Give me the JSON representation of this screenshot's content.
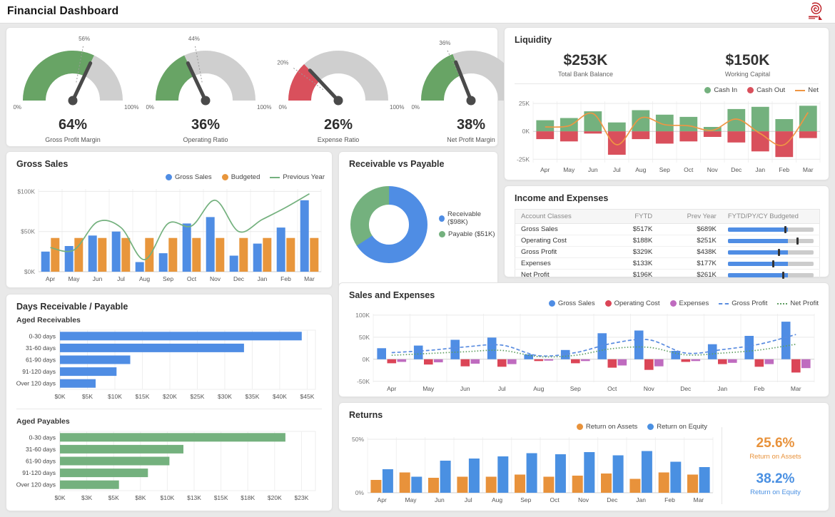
{
  "header": {
    "title": "Financial Dashboard",
    "logo": "spiral-logo"
  },
  "colors": {
    "blue": "#4f8de4",
    "orange": "#e8963c",
    "green": "#74b17e",
    "gauge_green": "#68a465",
    "red": "#d9505c",
    "crimson": "#db4557",
    "purple": "#bf6bbf",
    "net_line": "#ef9643",
    "gp_line": "#5a8ce0",
    "np_line": "#5f9e62",
    "roa_orange": "#e8923b",
    "roe_blue": "#4a90e2",
    "track_gray": "#cccccc",
    "marker_black": "#333333",
    "logo_red": "#c0272d"
  },
  "panels": {
    "liquidity": {
      "title": "Liquidity",
      "stats": [
        {
          "value": "$253K",
          "label": "Total Bank Balance"
        },
        {
          "value": "$150K",
          "label": "Working Capital"
        }
      ]
    },
    "gross_sales": {
      "title": "Gross Sales"
    },
    "receivable_payable": {
      "title": "Receivable vs Payable"
    },
    "income_expenses": {
      "title": "Income and Expenses"
    },
    "sales_expenses": {
      "title": "Sales and Expenses"
    },
    "days": {
      "title": "Days Receivable / Payable"
    },
    "returns": {
      "title": "Returns"
    }
  },
  "chart_data": [
    {
      "id": "gauges",
      "type": "gauge",
      "scale_min_label": "0%",
      "scale_max_label": "100%",
      "items": [
        {
          "label": "Gross Profit Margin",
          "value": 64,
          "target": 56,
          "value_label": "64%",
          "target_label": "56%",
          "color": "gauge_green"
        },
        {
          "label": "Operating Ratio",
          "value": 36,
          "target": 44,
          "value_label": "36%",
          "target_label": "44%",
          "color": "gauge_green"
        },
        {
          "label": "Expense Ratio",
          "value": 26,
          "target": 20,
          "value_label": "26%",
          "target_label": "20%",
          "color": "red"
        },
        {
          "label": "Net Profit Margin",
          "value": 38,
          "target": 36,
          "value_label": "38%",
          "target_label": "36%",
          "color": "gauge_green"
        }
      ]
    },
    {
      "id": "liquidity",
      "type": "bar",
      "title": "Liquidity",
      "categories": [
        "Apr",
        "May",
        "Jun",
        "Jul",
        "Aug",
        "Sep",
        "Oct",
        "Nov",
        "Dec",
        "Jan",
        "Feb",
        "Mar"
      ],
      "overlap": true,
      "series": [
        {
          "name": "Cash In",
          "color": "green",
          "values": [
            10,
            12,
            18,
            8,
            19,
            15,
            13,
            4,
            20,
            22,
            11,
            23
          ]
        },
        {
          "name": "Cash Out",
          "color": "red",
          "values": [
            -7,
            -9,
            -2,
            -21,
            -7,
            -11,
            -9,
            -5,
            -10,
            -18,
            -23,
            -6
          ]
        }
      ],
      "line_series": [
        {
          "name": "Net",
          "color": "net_line",
          "style": "solid",
          "values": [
            4,
            5,
            16,
            -12,
            12,
            6,
            5,
            1,
            11,
            -2,
            -12,
            17
          ]
        }
      ],
      "ylim": [
        -28,
        27
      ],
      "yticks": [
        {
          "v": 25,
          "label": "25K"
        },
        {
          "v": 0,
          "label": "0K"
        },
        {
          "v": -25,
          "label": "-25K"
        }
      ]
    },
    {
      "id": "gross_sales",
      "type": "bar",
      "title": "Gross Sales",
      "categories": [
        "Apr",
        "May",
        "Jun",
        "Jul",
        "Aug",
        "Sep",
        "Oct",
        "Nov",
        "Dec",
        "Jan",
        "Feb",
        "Mar"
      ],
      "series": [
        {
          "name": "Gross Sales",
          "color": "blue",
          "values": [
            25,
            32,
            45,
            50,
            12,
            23,
            60,
            68,
            20,
            35,
            55,
            89
          ]
        },
        {
          "name": "Budgeted",
          "color": "orange",
          "values": [
            42,
            42,
            42,
            42,
            42,
            42,
            42,
            42,
            42,
            42,
            42,
            42
          ]
        }
      ],
      "line_series": [
        {
          "name": "Previous Year",
          "color": "green",
          "style": "solid",
          "values": [
            30,
            27,
            62,
            55,
            15,
            60,
            57,
            89,
            50,
            65,
            80,
            97
          ]
        }
      ],
      "ylim": [
        0,
        103
      ],
      "yticks": [
        {
          "v": 100,
          "label": "$100K"
        },
        {
          "v": 50,
          "label": "$50K"
        },
        {
          "v": 0,
          "label": "$0K"
        }
      ]
    },
    {
      "id": "receivable_payable",
      "type": "pie",
      "title": "Receivable vs Payable",
      "slices": [
        {
          "label": "Receivable ($98K)",
          "value": 98,
          "color": "blue"
        },
        {
          "label": "Payable ($51K)",
          "value": 51,
          "color": "green"
        }
      ]
    },
    {
      "id": "income_expenses",
      "type": "table",
      "title": "Income and Expenses",
      "columns": [
        "Account Classes",
        "FYTD",
        "Prev Year",
        "FYTD/PY/CY Budgeted"
      ],
      "rows": [
        {
          "account": "Gross Sales",
          "fytd": "$517K",
          "prev_year": "$689K",
          "bar_pct": 70,
          "marker_pct": 66
        },
        {
          "account": "Operating Cost",
          "fytd": "$188K",
          "prev_year": "$251K",
          "bar_pct": 70,
          "marker_pct": 80
        },
        {
          "account": "Gross Profit",
          "fytd": "$329K",
          "prev_year": "$438K",
          "bar_pct": 70,
          "marker_pct": 58
        },
        {
          "account": "Expenses",
          "fytd": "$133K",
          "prev_year": "$177K",
          "bar_pct": 70,
          "marker_pct": 52
        },
        {
          "account": "Net Profit",
          "fytd": "$196K",
          "prev_year": "$261K",
          "bar_pct": 70,
          "marker_pct": 63
        }
      ]
    },
    {
      "id": "sales_expenses",
      "type": "bar",
      "title": "Sales and Expenses",
      "categories": [
        "Apr",
        "May",
        "Jun",
        "Jul",
        "Aug",
        "Sep",
        "Oct",
        "Nov",
        "Dec",
        "Jan",
        "Feb",
        "Mar"
      ],
      "series": [
        {
          "name": "Gross Sales",
          "color": "blue",
          "values": [
            25,
            31,
            44,
            49,
            11,
            21,
            59,
            65,
            19,
            34,
            53,
            85
          ]
        },
        {
          "name": "Operating Cost",
          "color": "crimson",
          "values": [
            -9,
            -12,
            -16,
            -17,
            -4,
            -9,
            -19,
            -24,
            -6,
            -11,
            -17,
            -30
          ]
        },
        {
          "name": "Expenses",
          "color": "purple",
          "values": [
            -6,
            -7,
            -10,
            -11,
            -3,
            -4,
            -14,
            -16,
            -4,
            -8,
            -11,
            -20
          ]
        }
      ],
      "line_series": [
        {
          "name": "Gross Profit",
          "color": "gp_line",
          "style": "dashed",
          "values": [
            15,
            20,
            28,
            32,
            8,
            15,
            36,
            44,
            14,
            22,
            34,
            56
          ]
        },
        {
          "name": "Net Profit",
          "color": "np_line",
          "style": "dotted",
          "values": [
            9,
            13,
            17,
            20,
            6,
            9,
            24,
            27,
            10,
            14,
            21,
            34
          ]
        }
      ],
      "ylim": [
        -52,
        103
      ],
      "yticks": [
        {
          "v": 100,
          "label": "100K"
        },
        {
          "v": 50,
          "label": "50K"
        },
        {
          "v": 0,
          "label": "0K"
        },
        {
          "v": -50,
          "label": "-50K"
        }
      ]
    },
    {
      "id": "aged_receivables",
      "type": "bar",
      "orientation": "horizontal",
      "title": "Aged Receivables",
      "categories": [
        "0-30 days",
        "31-60 days",
        "61-90 days",
        "91-120 days",
        "Over 120 days"
      ],
      "values": [
        44,
        33.5,
        12.8,
        10.3,
        6.5
      ],
      "color": "blue",
      "xmax": 46.5,
      "xticks": [
        {
          "v": 0,
          "label": "$0K"
        },
        {
          "v": 5,
          "label": "$5K"
        },
        {
          "v": 10,
          "label": "$10K"
        },
        {
          "v": 15,
          "label": "$15K"
        },
        {
          "v": 20,
          "label": "$20K"
        },
        {
          "v": 25,
          "label": "$25K"
        },
        {
          "v": 30,
          "label": "$30K"
        },
        {
          "v": 35,
          "label": "$35K"
        },
        {
          "v": 40,
          "label": "$40K"
        },
        {
          "v": 45,
          "label": "$45K"
        }
      ]
    },
    {
      "id": "aged_payables",
      "type": "bar",
      "orientation": "horizontal",
      "title": "Aged Payables",
      "categories": [
        "0-30 days",
        "31-60 days",
        "61-90 days",
        "91-120 days",
        "Over 120 days"
      ],
      "values": [
        21,
        11.5,
        10.2,
        8.2,
        5.5
      ],
      "color": "green",
      "xmax": 23.8,
      "xticks": [
        {
          "v": 0,
          "label": "$0K"
        },
        {
          "v": 2.5,
          "label": "$3K"
        },
        {
          "v": 5,
          "label": "$5K"
        },
        {
          "v": 7.5,
          "label": "$8K"
        },
        {
          "v": 10,
          "label": "$10K"
        },
        {
          "v": 12.5,
          "label": "$13K"
        },
        {
          "v": 15,
          "label": "$15K"
        },
        {
          "v": 17.5,
          "label": "$18K"
        },
        {
          "v": 20,
          "label": "$20K"
        },
        {
          "v": 22.5,
          "label": "$23K"
        }
      ]
    },
    {
      "id": "returns",
      "type": "bar",
      "title": "Returns",
      "categories": [
        "Apr",
        "May",
        "Jun",
        "Jul",
        "Aug",
        "Sep",
        "Oct",
        "Nov",
        "Dec",
        "Jan",
        "Feb",
        "Mar"
      ],
      "series": [
        {
          "name": "Return on Assets",
          "color": "roa_orange",
          "values": [
            12,
            19,
            14,
            15,
            15,
            17,
            15,
            16,
            18,
            13,
            19,
            17
          ]
        },
        {
          "name": "Return on Equity",
          "color": "roe_blue",
          "values": [
            22,
            15,
            30,
            32,
            34,
            37,
            36,
            38,
            35,
            39,
            29,
            24
          ]
        }
      ],
      "ylim": [
        0,
        52
      ],
      "yticks": [
        {
          "v": 50,
          "label": "50%"
        },
        {
          "v": 0,
          "label": "0%"
        }
      ],
      "stats": [
        {
          "value": "25.6%",
          "label": "Return on Assets",
          "color": "roa_orange"
        },
        {
          "value": "38.2%",
          "label": "Return on Equity",
          "color": "roe_blue"
        }
      ]
    }
  ]
}
